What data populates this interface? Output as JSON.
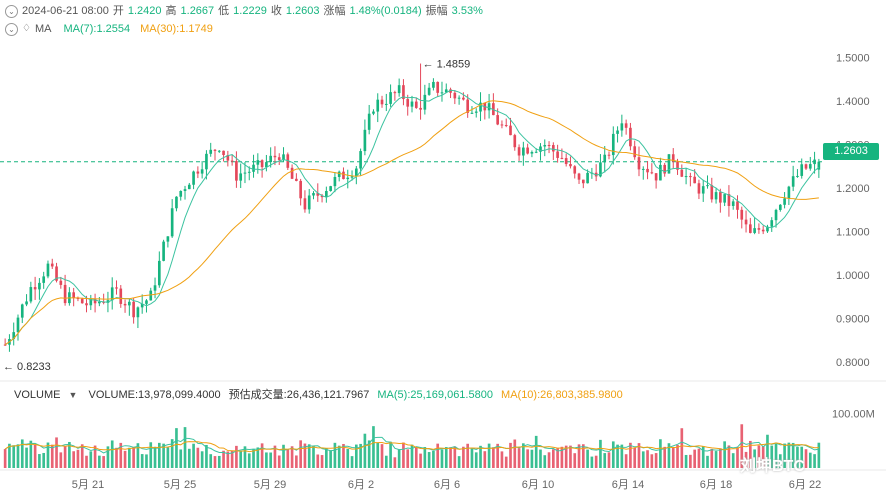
{
  "header": {
    "datetime": "2024-06-21 08:00",
    "open_label": "开",
    "open": "1.2420",
    "high_label": "高",
    "high": "1.2667",
    "low_label": "低",
    "low": "1.2229",
    "close_label": "收",
    "close": "1.2603",
    "change_label": "涨幅",
    "change": "1.48%(0.0184)",
    "amplitude_label": "振幅",
    "amplitude": "3.53%"
  },
  "ma_header": {
    "label": "MA",
    "ma7": "MA(7):1.2554",
    "ma30": "MA(30):1.1749"
  },
  "volume_header": {
    "label": "VOLUME",
    "volume": "VOLUME:13,978,099.4000",
    "estimated": "预估成交量:26,436,121.7967",
    "ma5": "MA(5):25,169,061.5800",
    "ma10": "MA(10):26,803,385.9800"
  },
  "current_price": "1.2603",
  "annotations": {
    "max": "← 1.4859",
    "min": "← 0.8233"
  },
  "watermark": "刘坤BTC",
  "colors": {
    "up": "#16b47f",
    "down": "#e4475a",
    "ma7": "#3cc3a0",
    "ma30": "#f0a012",
    "dashed": "#16b47f"
  },
  "chart_data": {
    "type": "candlestick",
    "price_axis": {
      "ticks": [
        "1.5000",
        "1.4000",
        "1.3000",
        "1.2000",
        "1.1000",
        "1.0000",
        "0.9000",
        "0.8000"
      ],
      "range": [
        0.77,
        1.54
      ]
    },
    "volume_axis": {
      "ticks": [
        "100.00M"
      ],
      "range": [
        0,
        110000000
      ]
    },
    "time_axis": {
      "labels": [
        "5月 21",
        "5月 25",
        "5月 29",
        "6月 2",
        "6月 6",
        "6月 10",
        "6月 14",
        "6月 18",
        "6月 22"
      ]
    },
    "period": "4h",
    "max_price": 1.4859,
    "min_price": 0.8233,
    "last_close": 1.2603,
    "waypoints": [
      [
        0,
        0.84
      ],
      [
        6,
        0.97
      ],
      [
        10,
        1.02
      ],
      [
        14,
        0.95
      ],
      [
        20,
        0.93
      ],
      [
        26,
        0.96
      ],
      [
        30,
        0.92
      ],
      [
        34,
        0.95
      ],
      [
        40,
        1.18
      ],
      [
        46,
        1.26
      ],
      [
        50,
        1.3
      ],
      [
        54,
        1.23
      ],
      [
        60,
        1.25
      ],
      [
        64,
        1.28
      ],
      [
        70,
        1.16
      ],
      [
        76,
        1.21
      ],
      [
        82,
        1.25
      ],
      [
        86,
        1.39
      ],
      [
        92,
        1.42
      ],
      [
        96,
        1.38
      ],
      [
        100,
        1.43
      ],
      [
        104,
        1.42
      ],
      [
        108,
        1.39
      ],
      [
        112,
        1.39
      ],
      [
        116,
        1.34
      ],
      [
        120,
        1.29
      ],
      [
        126,
        1.3
      ],
      [
        130,
        1.27
      ],
      [
        134,
        1.21
      ],
      [
        140,
        1.26
      ],
      [
        144,
        1.36
      ],
      [
        148,
        1.26
      ],
      [
        152,
        1.23
      ],
      [
        156,
        1.27
      ],
      [
        160,
        1.21
      ],
      [
        164,
        1.19
      ],
      [
        170,
        1.16
      ],
      [
        174,
        1.09
      ],
      [
        178,
        1.12
      ],
      [
        182,
        1.19
      ],
      [
        186,
        1.24
      ],
      [
        190,
        1.26
      ]
    ]
  }
}
